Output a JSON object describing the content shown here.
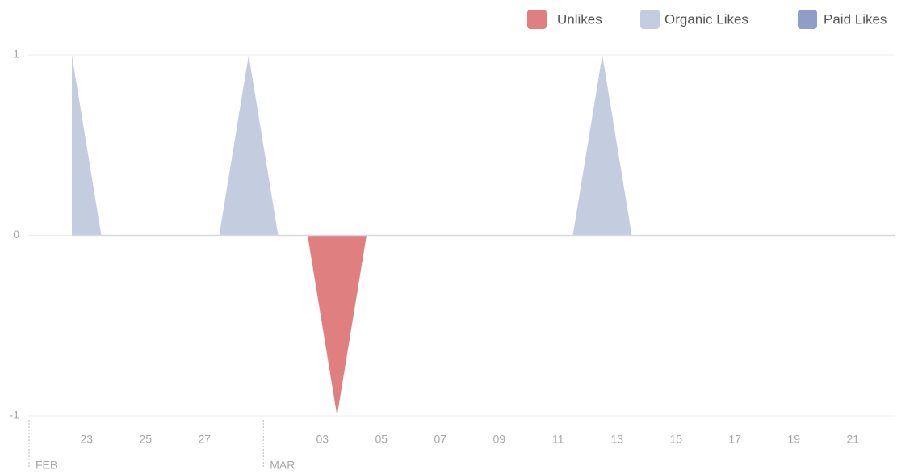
{
  "chart_data": {
    "type": "area",
    "categories": [
      "23",
      null,
      "25",
      null,
      "27",
      null,
      null,
      null,
      "03",
      null,
      "05",
      null,
      "07",
      null,
      "09",
      null,
      "11",
      null,
      "13",
      null,
      "15",
      null,
      "17",
      null,
      "19",
      null,
      "21",
      null
    ],
    "month_labels": [
      "FEB",
      "MAR"
    ],
    "series": [
      {
        "name": "Unlikes",
        "color": "#e07f7f",
        "values": [
          0,
          0,
          0,
          0,
          0,
          0,
          0,
          0,
          0,
          -1,
          0,
          0,
          0,
          0,
          0,
          0,
          0,
          0,
          0,
          0,
          0,
          0,
          0,
          0,
          0,
          0,
          0,
          0
        ]
      },
      {
        "name": "Organic Likes",
        "color": "#c4cce0",
        "values": [
          1,
          0,
          0,
          0,
          0,
          0,
          1,
          0,
          0,
          0,
          0,
          0,
          0,
          0,
          0,
          0,
          0,
          0,
          1,
          0,
          0,
          0,
          0,
          0,
          0,
          0,
          0,
          0
        ]
      },
      {
        "name": "Paid Likes",
        "color": "#8f9dc8",
        "values": [
          0,
          0,
          0,
          0,
          0,
          0,
          0,
          0,
          0,
          0,
          0,
          0,
          0,
          0,
          0,
          0,
          0,
          0,
          0,
          0,
          0,
          0,
          0,
          0,
          0,
          0,
          0,
          0
        ]
      }
    ],
    "ylim": [
      -1,
      1
    ],
    "yticks": [
      -1,
      0,
      1
    ],
    "grid": true,
    "legend": "top-right"
  }
}
